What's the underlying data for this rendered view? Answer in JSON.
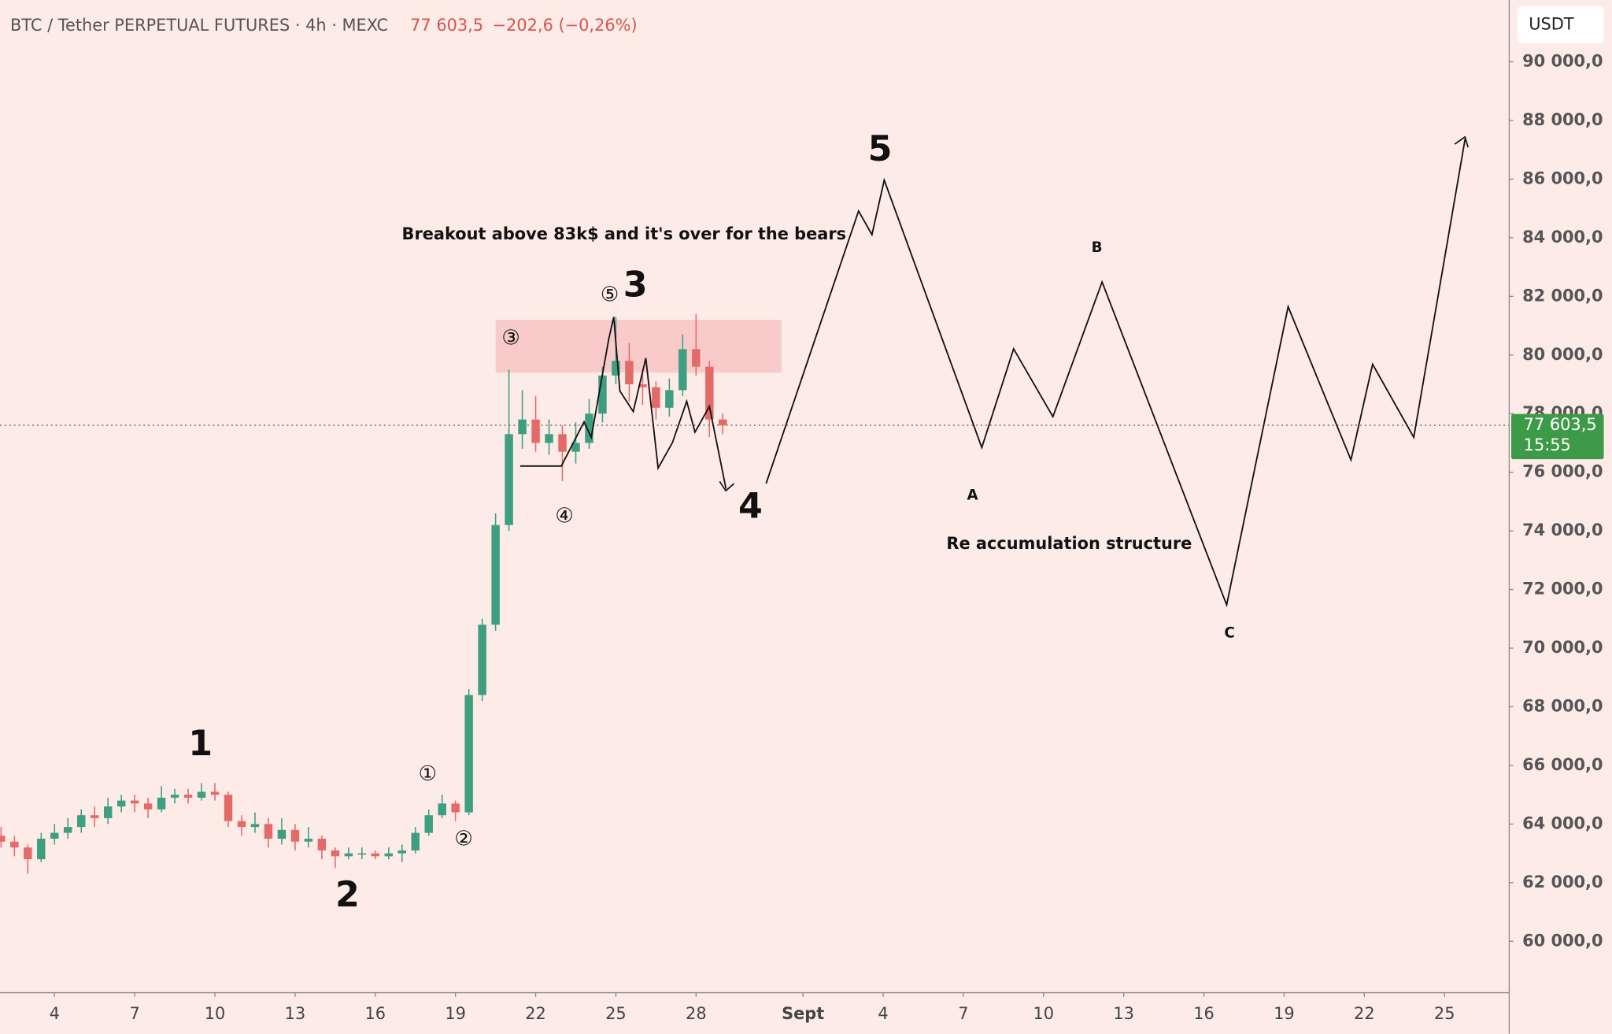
{
  "chart_data": {
    "type": "candlestick",
    "title": "BTC / Tether PERPETUAL FUTURES · 4h · MEXC",
    "change": "−202,6 (−0,26%)",
    "currency": "USDT",
    "last_price": 77603.5,
    "last_price_label": "77 603,5",
    "countdown": "15:55",
    "colors": {
      "up": "#3d9e80",
      "down": "#e46a6a",
      "line": "#111111",
      "zone": "#f8c6c6",
      "last": "#3d9a48"
    },
    "x": [
      2.0,
      2.5,
      3.0,
      3.5,
      4.0,
      4.5,
      5.0,
      5.5,
      6.0,
      6.5,
      7.0,
      7.5,
      8.0,
      8.5,
      9.0,
      9.5,
      10.0,
      10.5,
      11.0,
      11.5,
      12.0,
      12.5,
      13.0,
      13.5,
      14.0,
      14.5,
      15.0,
      15.5,
      16.0,
      16.5,
      17.0,
      17.5,
      18.0,
      18.5,
      19.0,
      19.5,
      20.0,
      20.5,
      21.0,
      21.5,
      22.0,
      22.5,
      23.0,
      23.5,
      24.0,
      24.5,
      25.0,
      25.5,
      26.0,
      26.5,
      27.0,
      27.5,
      28.0,
      28.5,
      29.0
    ],
    "open": [
      63600,
      63400,
      63200,
      62800,
      63500,
      63700,
      63900,
      64300,
      64200,
      64600,
      64800,
      64700,
      64500,
      64900,
      65000,
      64900,
      65100,
      65000,
      64100,
      63900,
      64000,
      63500,
      63800,
      63400,
      63500,
      63100,
      62900,
      63000,
      63000,
      62900,
      63000,
      63100,
      63700,
      64300,
      64700,
      64400,
      68400,
      70800,
      74200,
      77300,
      77800,
      77000,
      77300,
      76700,
      77000,
      78000,
      79300,
      79800,
      79000,
      78900,
      78200,
      78800,
      80200,
      79600,
      77800
    ],
    "high": [
      63900,
      63600,
      63300,
      63700,
      64000,
      64200,
      64500,
      64600,
      64900,
      65000,
      65000,
      64900,
      65300,
      65200,
      65200,
      65400,
      65400,
      65100,
      64300,
      64400,
      64200,
      64200,
      64000,
      63900,
      63600,
      63200,
      63200,
      63200,
      63100,
      63200,
      63300,
      63900,
      64500,
      65000,
      64800,
      68600,
      71000,
      74600,
      79500,
      78800,
      78600,
      77800,
      77600,
      77700,
      78500,
      79600,
      81300,
      80400,
      79500,
      79100,
      79200,
      80700,
      81400,
      79800,
      78000
    ],
    "low": [
      63200,
      62900,
      62300,
      62700,
      63300,
      63500,
      63700,
      63900,
      64000,
      64400,
      64400,
      64200,
      64400,
      64700,
      64700,
      64800,
      64800,
      63900,
      63600,
      63700,
      63200,
      63300,
      63100,
      63200,
      62800,
      62500,
      62800,
      62800,
      62800,
      62800,
      62700,
      63000,
      63600,
      64200,
      64100,
      64300,
      68200,
      70600,
      74000,
      76800,
      76700,
      76600,
      75700,
      76300,
      76800,
      77700,
      79000,
      78400,
      78300,
      77800,
      77900,
      78600,
      79300,
      77200,
      77300
    ],
    "close": [
      63400,
      63200,
      62800,
      63500,
      63700,
      63900,
      64300,
      64200,
      64600,
      64800,
      64700,
      64500,
      64900,
      65000,
      64900,
      65100,
      65000,
      64100,
      63900,
      64000,
      63500,
      63800,
      63400,
      63500,
      63100,
      62900,
      63000,
      63000,
      62900,
      63000,
      63100,
      63700,
      64300,
      64700,
      64400,
      68400,
      70800,
      74200,
      77300,
      77800,
      77000,
      77300,
      76700,
      77000,
      78000,
      79300,
      79800,
      79000,
      78900,
      78200,
      78800,
      80200,
      79600,
      77800,
      77600
    ],
    "xlim": [
      1.96,
      58.42
    ],
    "xticks": [
      4,
      7,
      10,
      13,
      16,
      19,
      22,
      25,
      28,
      {
        "value": 32,
        "label": "Sept"
      },
      {
        "value": 35,
        "label": "4"
      },
      {
        "value": 38,
        "label": "7"
      },
      {
        "value": 41,
        "label": "10"
      },
      {
        "value": 44,
        "label": "13"
      },
      {
        "value": 47,
        "label": "16"
      },
      {
        "value": 50,
        "label": "19"
      },
      {
        "value": 53,
        "label": "22"
      },
      {
        "value": 56,
        "label": "25"
      }
    ],
    "ylim": [
      58246,
      92105
    ],
    "yticks": [
      {
        "value": 60000,
        "label": "60 000,0"
      },
      {
        "value": 62000,
        "label": "62 000,0"
      },
      {
        "value": 64000,
        "label": "64 000,0"
      },
      {
        "value": 66000,
        "label": "66 000,0"
      },
      {
        "value": 68000,
        "label": "68 000,0"
      },
      {
        "value": 70000,
        "label": "70 000,0"
      },
      {
        "value": 72000,
        "label": "72 000,0"
      },
      {
        "value": 74000,
        "label": "74 000,0"
      },
      {
        "value": 76000,
        "label": "76 000,0"
      },
      {
        "value": 78000,
        "label": "78 000,0"
      },
      {
        "value": 80000,
        "label": "80 000,0"
      },
      {
        "value": 82000,
        "label": "82 000,0"
      },
      {
        "value": 84000,
        "label": "84 000,0"
      },
      {
        "value": 86000,
        "label": "86 000,0"
      },
      {
        "value": 88000,
        "label": "88 000,0"
      },
      {
        "value": 90000,
        "label": "90 000,0"
      }
    ],
    "zone": {
      "x": [
        20.5,
        31.2
      ],
      "y": [
        79400,
        81200
      ]
    },
    "paths": [
      {
        "x": [
          21.42,
          22.96,
          23.81,
          24.08,
          24.73,
          24.92,
          25.15,
          25.65,
          26.12,
          26.58,
          27.12,
          27.65,
          27.96,
          28.5,
          29.12
        ],
        "y": [
          76211,
          76211,
          77719,
          77193,
          80526,
          81298,
          78772,
          78070,
          79895,
          76140,
          77018,
          78421,
          77368,
          78246,
          75439
        ]
      },
      {
        "x": [
          30.62,
          34.08,
          34.58,
          35.04,
          38.69,
          39.88,
          41.35,
          43.19,
          47.85,
          50.15,
          52.5,
          53.31,
          54.85,
          56.77
        ],
        "y": [
          75614,
          84912,
          84105,
          85965,
          76842,
          80210,
          77895,
          82491,
          71474,
          81649,
          76421,
          79684,
          77193,
          87368
        ]
      }
    ],
    "annotations": [
      "1",
      "2",
      "3",
      "4",
      "5",
      "A",
      "B",
      "C",
      "③",
      "⑤",
      "④",
      "①",
      "②",
      "Breakout above 83k$ and it's over for the bears",
      "Re accumulation structure"
    ]
  }
}
